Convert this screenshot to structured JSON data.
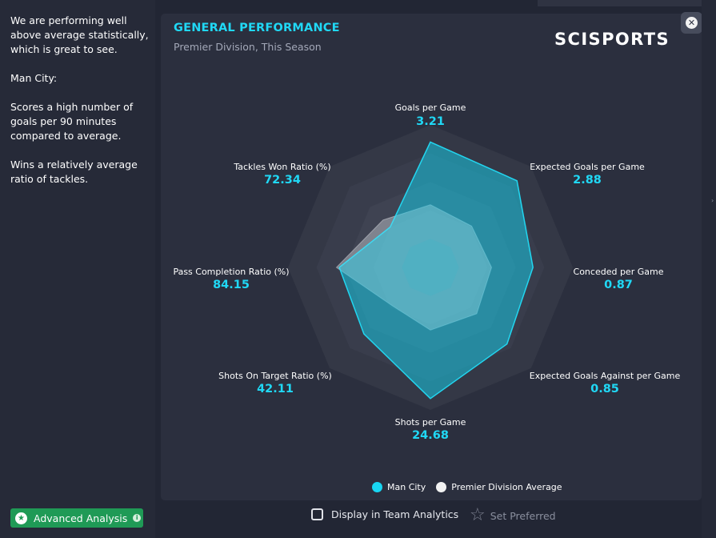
{
  "summary": {
    "paragraphs": [
      "We are performing well above average statistically, which is great to see.",
      "Man City:",
      "Scores a high number of goals per 90 minutes compared to average.",
      "Wins a relatively average ratio of tackles."
    ]
  },
  "card": {
    "title": "GENERAL PERFORMANCE",
    "subtitle": "Premier Division, This Season",
    "brand": "SCISPORTS",
    "close_icon": "close-icon"
  },
  "legend": {
    "team": "Man City",
    "average": "Premier Division Average",
    "team_color": "#18d6f2",
    "average_color": "#f2f2f2"
  },
  "footer": {
    "advanced_label": "Advanced Analysis",
    "display_label": "Display in Team Analytics",
    "preferred_label": "Set Preferred"
  },
  "colors": {
    "accent": "#20d8f5",
    "button_green": "#1f9a56"
  },
  "chart_data": {
    "type": "radar",
    "title": "GENERAL PERFORMANCE",
    "subtitle": "Premier Division, This Season",
    "axes": [
      {
        "label": "Goals per Game",
        "value": "3.21"
      },
      {
        "label": "Expected Goals per Game",
        "value": "2.88"
      },
      {
        "label": "Conceded per Game",
        "value": "0.87"
      },
      {
        "label": "Expected Goals Against per Game",
        "value": "0.85"
      },
      {
        "label": "Shots per Game",
        "value": "24.68"
      },
      {
        "label": "Shots On Target Ratio (%)",
        "value": "42.11"
      },
      {
        "label": "Pass Completion Ratio (%)",
        "value": "84.15"
      },
      {
        "label": "Tackles Won Ratio (%)",
        "value": "72.34"
      }
    ],
    "series": [
      {
        "name": "Man City",
        "normalized": [
          0.88,
          0.86,
          0.72,
          0.76,
          0.92,
          0.66,
          0.64,
          0.4
        ]
      },
      {
        "name": "Premier Division Average",
        "normalized": [
          0.44,
          0.41,
          0.43,
          0.46,
          0.44,
          0.38,
          0.66,
          0.47
        ]
      }
    ],
    "rings": 5,
    "range": [
      0,
      1
    ]
  }
}
